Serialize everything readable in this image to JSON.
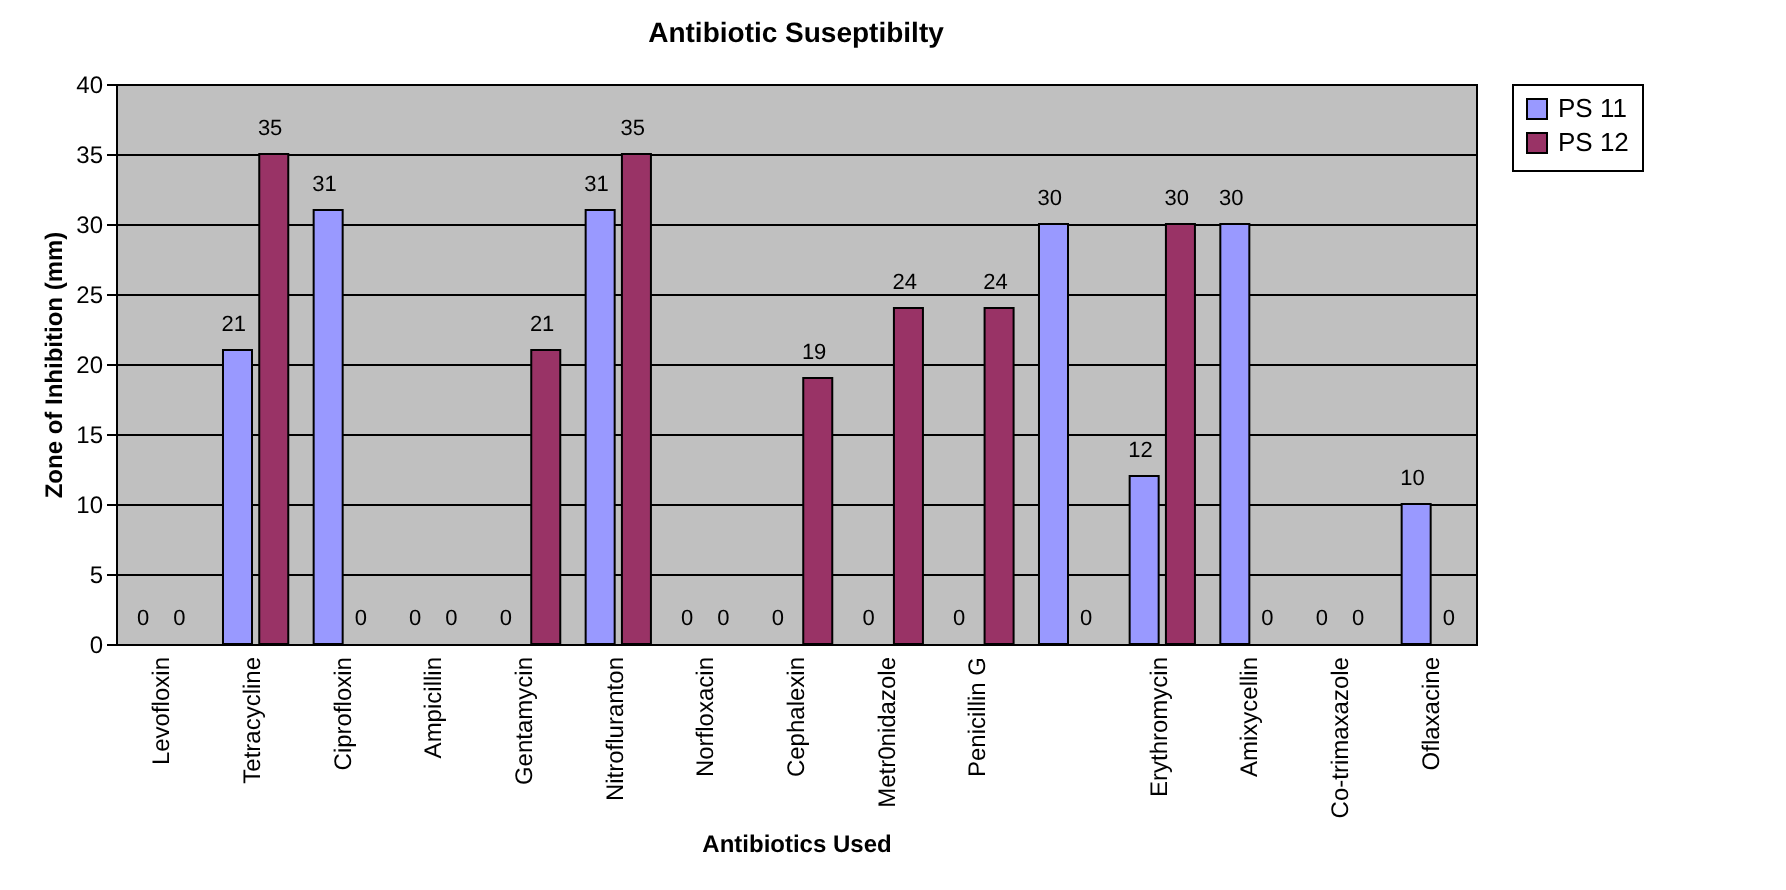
{
  "chart_data": {
    "type": "bar",
    "title": "Antibiotic Suseptibilty",
    "xlabel": "Antibiotics Used",
    "ylabel": "Zone of Inhibition (mm)",
    "categories": [
      "Levofloxin",
      "Tetracycline",
      "Ciprofloxin",
      "Ampicillin",
      "Gentamycin",
      "Nitrofluranton",
      "Norfloxacin",
      "Cephalexin",
      "Metr0nidazole",
      "Penicillin G",
      null,
      "Erythromycin",
      "Amixycellin",
      "Co-trimaxazole",
      "Oflaxacine"
    ],
    "series": [
      {
        "name": "PS 11",
        "color": "#9999ff",
        "values": [
          0,
          21,
          31,
          0,
          0,
          31,
          0,
          0,
          0,
          0,
          30,
          12,
          30,
          0,
          10
        ]
      },
      {
        "name": "PS 12",
        "color": "#993366",
        "values": [
          0,
          35,
          0,
          0,
          21,
          35,
          0,
          19,
          24,
          24,
          0,
          30,
          0,
          0,
          0
        ]
      }
    ],
    "ylim": [
      0,
      40
    ],
    "yticks": [
      0,
      5,
      10,
      15,
      20,
      25,
      30,
      35,
      40
    ],
    "grid": "y",
    "legend": "right",
    "data_labels": true
  }
}
